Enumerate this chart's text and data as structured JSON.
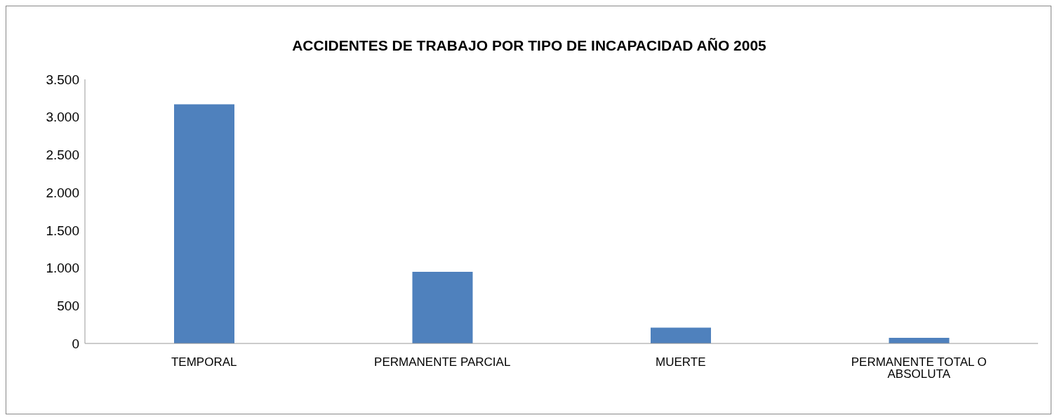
{
  "chart_data": {
    "type": "bar",
    "title": "ACCIDENTES DE TRABAJO POR TIPO DE INCAPACIDAD AÑO 2005",
    "categories": [
      "TEMPORAL",
      "PERMANENTE PARCIAL",
      "MUERTE",
      "PERMANENTE TOTAL O ABSOLUTA"
    ],
    "values": [
      3170,
      950,
      210,
      75
    ],
    "color": "#4f81bd",
    "ylim": [
      0,
      3500
    ],
    "yticks": [
      {
        "value": 0,
        "label": "0"
      },
      {
        "value": 500,
        "label": "500"
      },
      {
        "value": 1000,
        "label": "1.000"
      },
      {
        "value": 1500,
        "label": "1.500"
      },
      {
        "value": 2000,
        "label": "2.000"
      },
      {
        "value": 2500,
        "label": "2.500"
      },
      {
        "value": 3000,
        "label": "3.000"
      },
      {
        "value": 3500,
        "label": "3.500"
      }
    ],
    "grid": false,
    "legend": false
  }
}
